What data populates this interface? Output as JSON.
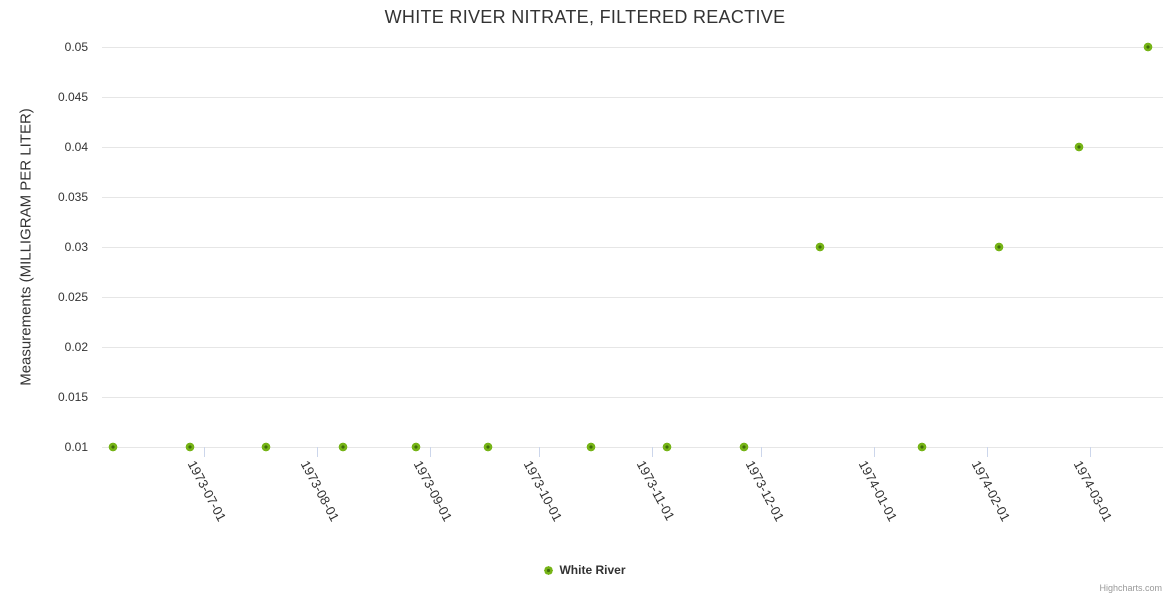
{
  "chart_data": {
    "type": "scatter",
    "title": "WHITE RIVER NITRATE, FILTERED REACTIVE",
    "xlabel": "",
    "ylabel": "Measurements (MILLIGRAM PER LITER)",
    "x_type": "datetime",
    "x_range": [
      "1973-06-03",
      "1974-03-21"
    ],
    "ylim": [
      0.01,
      0.05
    ],
    "grid": "horizontal-only",
    "legend_position": "bottom-center",
    "y_ticks": [
      {
        "value": 0.05,
        "label": "0.05"
      },
      {
        "value": 0.045,
        "label": "0.045"
      },
      {
        "value": 0.04,
        "label": "0.04"
      },
      {
        "value": 0.035,
        "label": "0.035"
      },
      {
        "value": 0.03,
        "label": "0.03"
      },
      {
        "value": 0.025,
        "label": "0.025"
      },
      {
        "value": 0.02,
        "label": "0.02"
      },
      {
        "value": 0.015,
        "label": "0.015"
      },
      {
        "value": 0.01,
        "label": "0.01"
      }
    ],
    "x_ticks": [
      {
        "date": "1973-07-01",
        "label": "1973-07-01"
      },
      {
        "date": "1973-08-01",
        "label": "1973-08-01"
      },
      {
        "date": "1973-09-01",
        "label": "1973-09-01"
      },
      {
        "date": "1973-10-01",
        "label": "1973-10-01"
      },
      {
        "date": "1973-11-01",
        "label": "1973-11-01"
      },
      {
        "date": "1973-12-01",
        "label": "1973-12-01"
      },
      {
        "date": "1974-01-01",
        "label": "1974-01-01"
      },
      {
        "date": "1974-02-01",
        "label": "1974-02-01"
      },
      {
        "date": "1974-03-01",
        "label": "1974-03-01"
      }
    ],
    "series": [
      {
        "name": "White River",
        "points": [
          {
            "date": "1973-06-06",
            "value": 0.01
          },
          {
            "date": "1973-06-27",
            "value": 0.01
          },
          {
            "date": "1973-07-18",
            "value": 0.01
          },
          {
            "date": "1973-08-08",
            "value": 0.01
          },
          {
            "date": "1973-08-28",
            "value": 0.01
          },
          {
            "date": "1973-09-17",
            "value": 0.01
          },
          {
            "date": "1973-10-15",
            "value": 0.01
          },
          {
            "date": "1973-11-05",
            "value": 0.01
          },
          {
            "date": "1973-11-26",
            "value": 0.01
          },
          {
            "date": "1973-12-17",
            "value": 0.03
          },
          {
            "date": "1974-01-14",
            "value": 0.01
          },
          {
            "date": "1974-02-04",
            "value": 0.03
          },
          {
            "date": "1974-02-26",
            "value": 0.04
          },
          {
            "date": "1974-03-17",
            "value": 0.05
          }
        ]
      }
    ]
  },
  "credits": {
    "label": "Highcharts.com"
  },
  "colors": {
    "text": "#333333",
    "grid_line": "#e6e6e6",
    "axis_line": "#ccd6eb",
    "credits_text": "#999999",
    "marker_fill": "#76b417",
    "marker_core": "#3f6d0a"
  }
}
